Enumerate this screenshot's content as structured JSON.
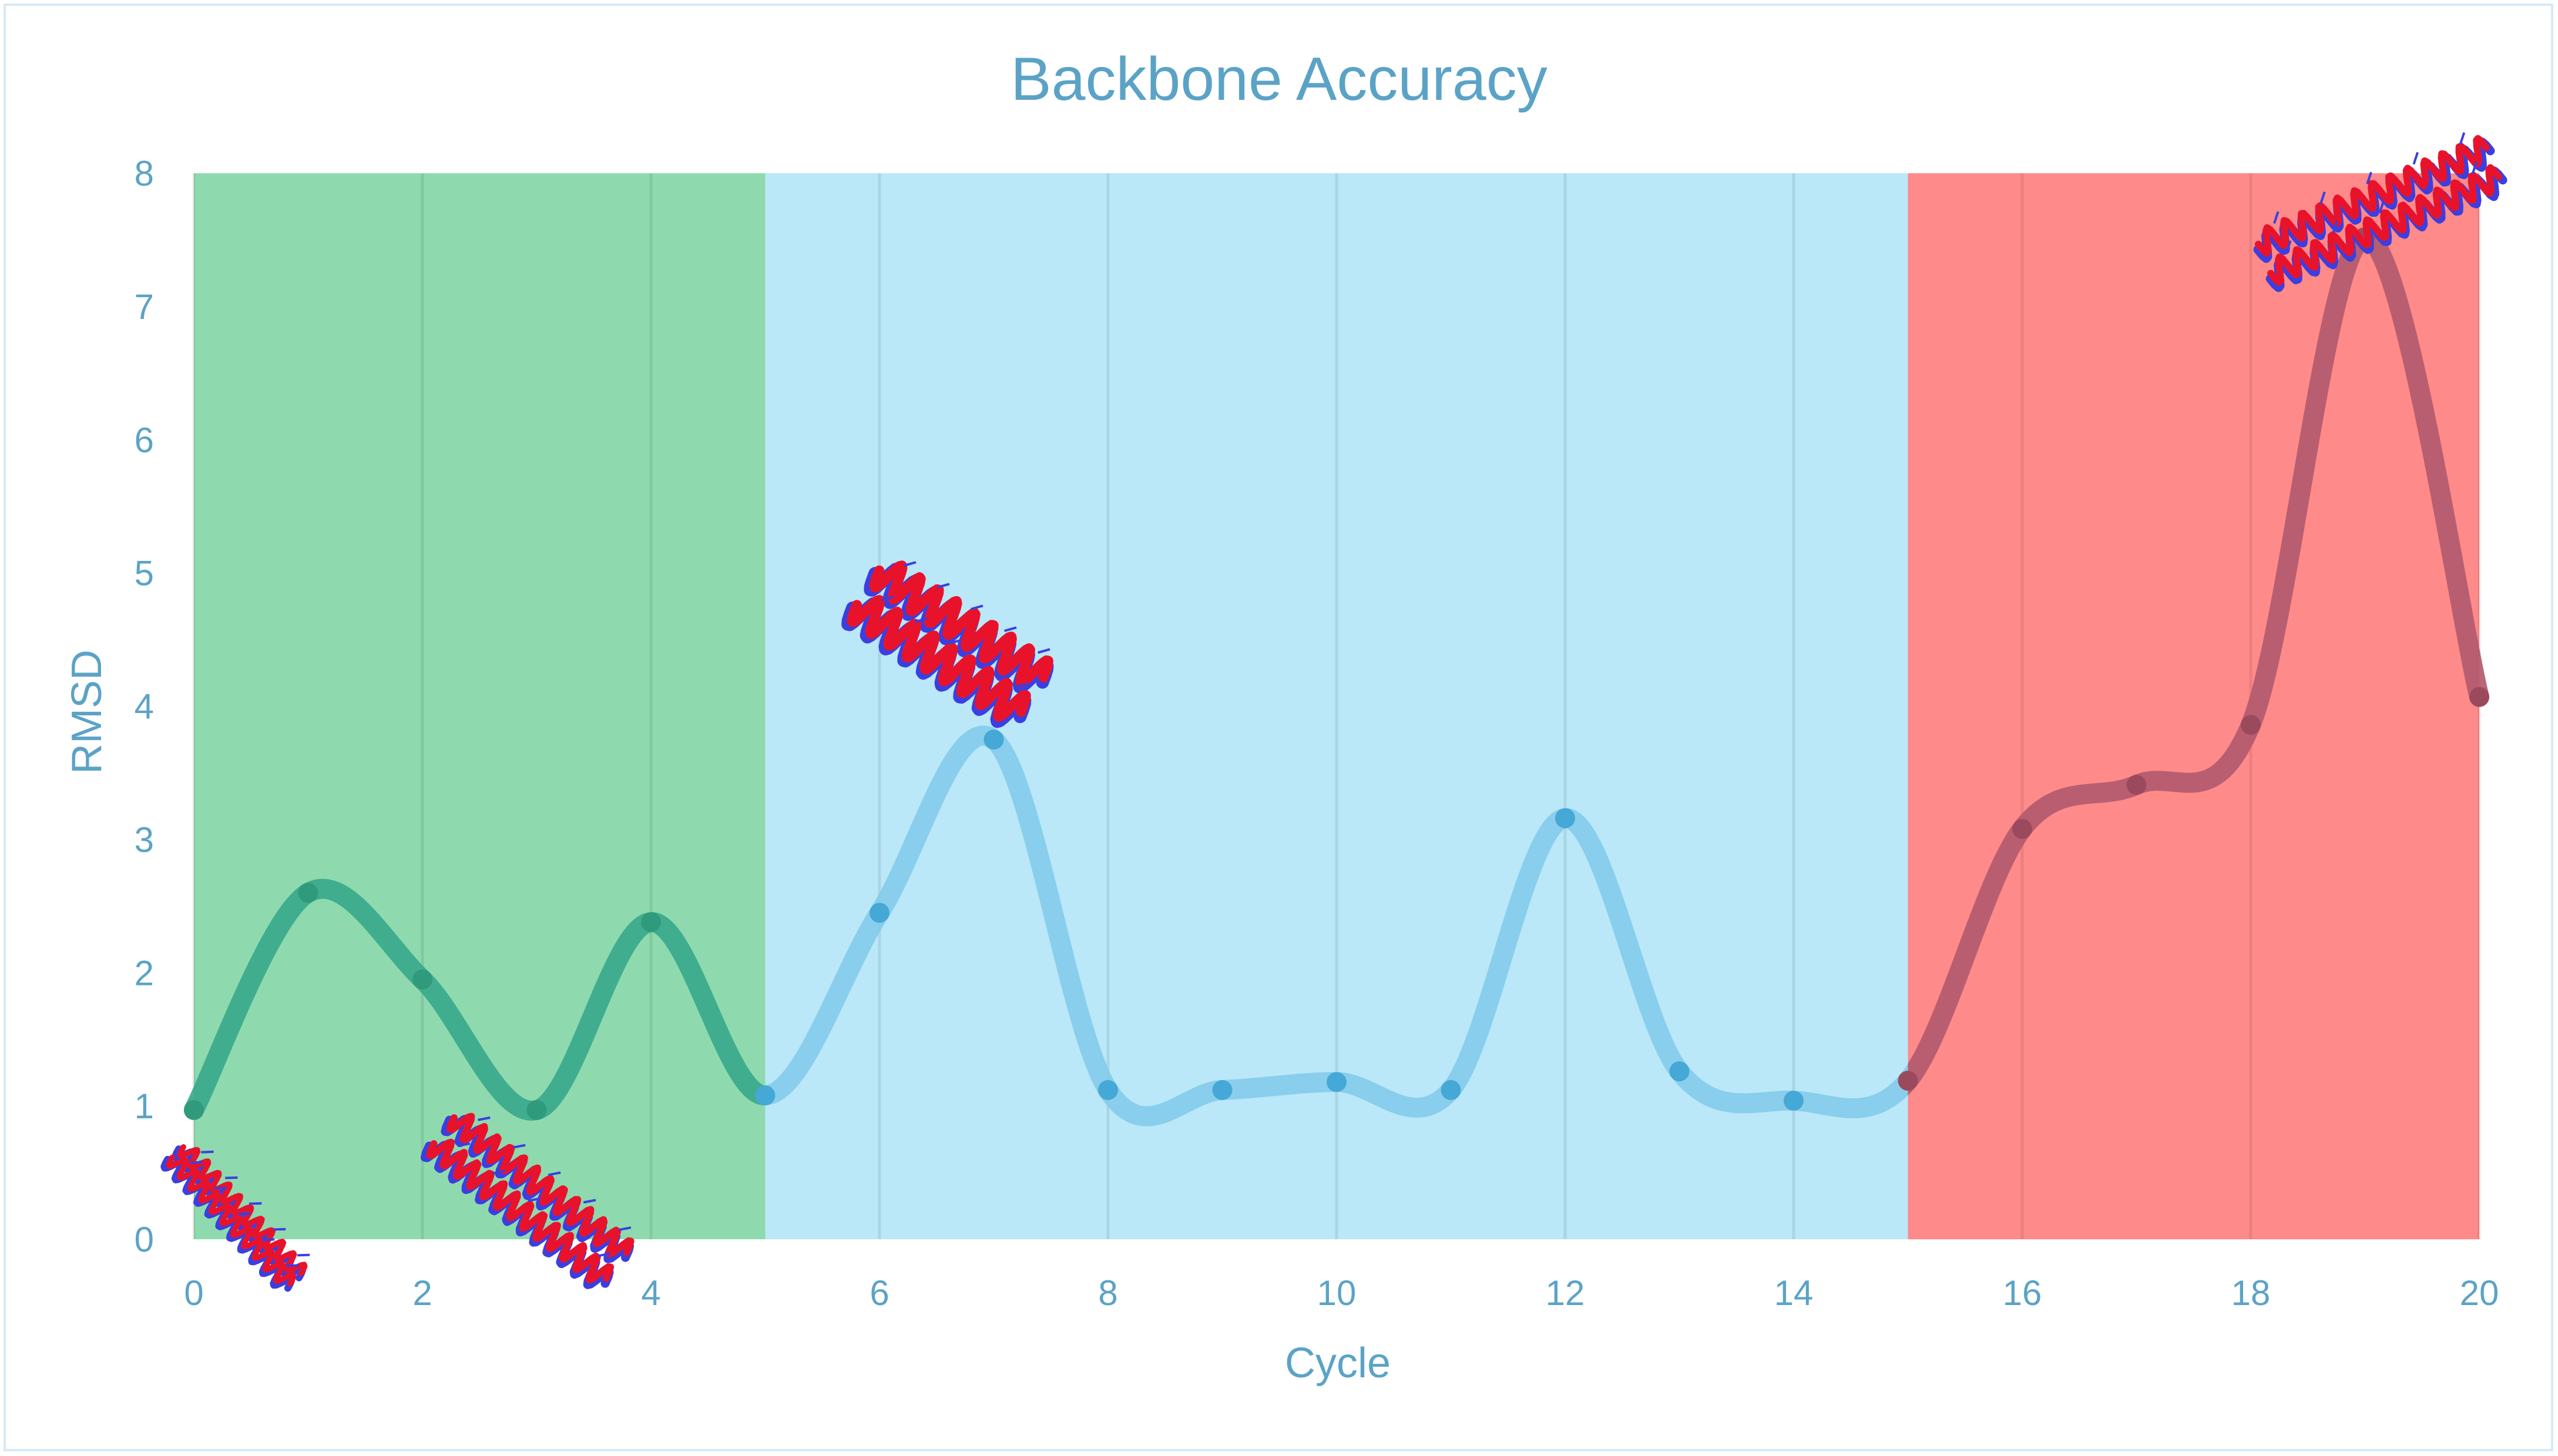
{
  "chart_data": {
    "type": "line",
    "title": "Backbone Accuracy",
    "xlabel": "Cycle",
    "ylabel": "RMSD",
    "xlim": [
      0,
      20
    ],
    "ylim": [
      0,
      8
    ],
    "x_ticks": [
      0,
      2,
      4,
      6,
      8,
      10,
      12,
      14,
      16,
      18,
      20
    ],
    "y_ticks": [
      0,
      1,
      2,
      3,
      4,
      5,
      6,
      7,
      8
    ],
    "grid": "vertical",
    "smooth": true,
    "series": [
      {
        "x": [
          0,
          1,
          2,
          3,
          4,
          5,
          6,
          7,
          8,
          9,
          10,
          11,
          12,
          13,
          14,
          15,
          16,
          17,
          18,
          19,
          20
        ],
        "values": [
          0.97,
          2.6,
          1.95,
          0.97,
          2.38,
          1.08,
          2.45,
          3.75,
          1.12,
          1.12,
          1.18,
          1.12,
          3.16,
          1.26,
          1.04,
          1.19,
          3.08,
          3.41,
          3.86,
          7.52,
          4.07
        ],
        "color": "#84cbea",
        "marker_color": "#45a8d6"
      }
    ],
    "regions": [
      {
        "x_range": [
          0,
          5
        ],
        "color": "#8edaae",
        "line_color": "#3aa98b",
        "marker_color": "#2f9b7c"
      },
      {
        "x_range": [
          5,
          15
        ],
        "color": "#bae8f8",
        "line_color": "#84cbea",
        "marker_color": "#45a8d6"
      },
      {
        "x_range": [
          15,
          20
        ],
        "color": "#ff8a8a",
        "line_color": "#b35a6e",
        "marker_color": "#9b4a5e"
      }
    ],
    "structure_images": [
      {
        "near_cycle": 0,
        "icon": "protein-helix-cartoon-icon"
      },
      {
        "near_cycle": 3,
        "icon": "protein-helix-cartoon-icon"
      },
      {
        "near_cycle": 7,
        "icon": "protein-helix-cartoon-icon"
      },
      {
        "near_cycle": 19,
        "icon": "protein-helix-cartoon-icon"
      }
    ],
    "colors": {
      "text": "#5ba3c6",
      "frame": "#d6e9f5",
      "red": "#e8132b",
      "blue": "#3b3fe0"
    }
  }
}
